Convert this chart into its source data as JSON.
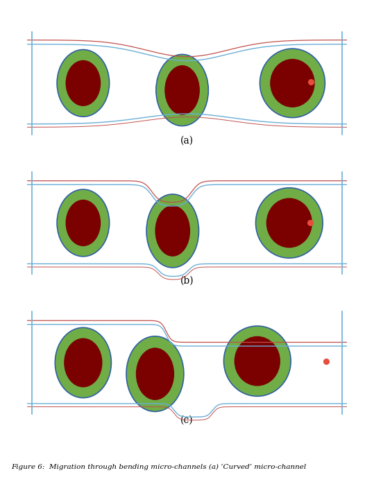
{
  "fig_width": 5.39,
  "fig_height": 6.95,
  "dpi": 100,
  "bg_color": "#ffffff",
  "wall_color_blue": "#6aaed6",
  "wall_color_orange": "#c0504d",
  "cell_outer_color": "#70ad47",
  "cell_inner_color": "#7b0000",
  "cell_border_color": "#2e5fa3",
  "dot_color": "#e74c3c",
  "caption_a": "(a)",
  "caption_b": "(b)",
  "caption_c": "(c)",
  "caption_fontsize": 10,
  "figcaption": "Figure 6:  Migration through bending micro-channels (a) ‘Curved’ micro-channel"
}
